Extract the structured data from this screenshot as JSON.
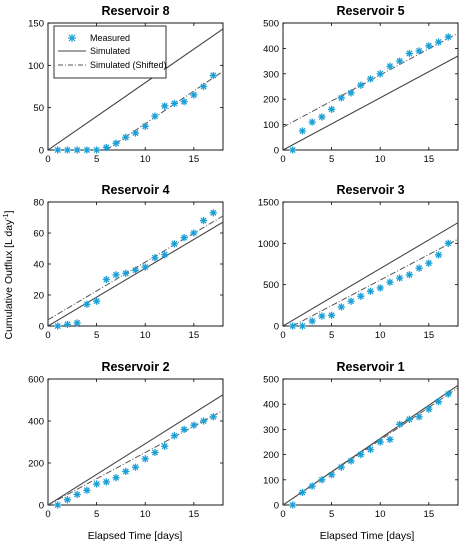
{
  "figure": {
    "ylabel": "Cumulative Outflux [L day",
    "ylabel_sup": "-1",
    "ylabel_close": "]",
    "xlabel": "Elapsed Time [days]"
  },
  "legend": {
    "measured": "Measured",
    "simulated": "Simulated",
    "shifted": "Simulated (Shifted)"
  },
  "colors": {
    "measured": "#1a9fd6",
    "simulated": "#444444",
    "shifted": "#555555"
  },
  "chart_data": [
    {
      "type": "scatter",
      "title": "Reservoir 8",
      "xlim": [
        0,
        18
      ],
      "ylim": [
        0,
        150
      ],
      "xticks": [
        0,
        5,
        10,
        15
      ],
      "yticks": [
        0,
        50,
        100,
        150
      ],
      "measured": {
        "x": [
          1,
          2,
          3,
          4,
          5,
          6,
          7,
          8,
          9,
          10,
          11,
          12,
          13,
          14,
          15,
          16,
          17
        ],
        "y": [
          0,
          0,
          0,
          0,
          0,
          3,
          8,
          15,
          20,
          28,
          40,
          52,
          55,
          57,
          65,
          75,
          88
        ]
      },
      "simulated": {
        "x": [
          0,
          18
        ],
        "y": [
          0,
          143
        ]
      },
      "shifted": {
        "x": [
          6,
          18
        ],
        "y": [
          0,
          93
        ]
      }
    },
    {
      "type": "scatter",
      "title": "Reservoir 5",
      "xlim": [
        0,
        18
      ],
      "ylim": [
        0,
        500
      ],
      "xticks": [
        0,
        5,
        10,
        15
      ],
      "yticks": [
        0,
        100,
        200,
        300,
        400,
        500
      ],
      "measured": {
        "x": [
          1,
          2,
          3,
          4,
          5,
          6,
          7,
          8,
          9,
          10,
          11,
          12,
          13,
          14,
          15,
          16,
          17
        ],
        "y": [
          0,
          75,
          110,
          130,
          160,
          205,
          225,
          255,
          280,
          300,
          330,
          350,
          380,
          390,
          410,
          425,
          445
        ]
      },
      "simulated": {
        "x": [
          0,
          18
        ],
        "y": [
          0,
          370
        ]
      },
      "shifted": {
        "x": [
          0,
          18
        ],
        "y": [
          90,
          460
        ]
      }
    },
    {
      "type": "scatter",
      "title": "Reservoir 4",
      "xlim": [
        0,
        18
      ],
      "ylim": [
        0,
        80
      ],
      "xticks": [
        0,
        5,
        10,
        15
      ],
      "yticks": [
        0,
        20,
        40,
        60,
        80
      ],
      "measured": {
        "x": [
          1,
          2,
          3,
          4,
          5,
          6,
          7,
          8,
          9,
          10,
          11,
          12,
          13,
          14,
          15,
          16,
          17
        ],
        "y": [
          0,
          1,
          2,
          14,
          16,
          30,
          33,
          34,
          36,
          38,
          44,
          46,
          53,
          57,
          60,
          68,
          73
        ]
      },
      "simulated": {
        "x": [
          0,
          18
        ],
        "y": [
          0,
          67
        ]
      },
      "shifted": {
        "x": [
          0,
          18
        ],
        "y": [
          4,
          71
        ]
      }
    },
    {
      "type": "scatter",
      "title": "Reservoir 3",
      "xlim": [
        0,
        18
      ],
      "ylim": [
        0,
        1500
      ],
      "xticks": [
        0,
        5,
        10,
        15
      ],
      "yticks": [
        0,
        500,
        1000,
        1500
      ],
      "measured": {
        "x": [
          1,
          2,
          3,
          4,
          5,
          6,
          7,
          8,
          9,
          10,
          11,
          12,
          13,
          14,
          15,
          16,
          17
        ],
        "y": [
          0,
          0,
          60,
          120,
          130,
          230,
          300,
          360,
          420,
          460,
          530,
          580,
          620,
          700,
          760,
          860,
          1000
        ]
      },
      "simulated": {
        "x": [
          0,
          18
        ],
        "y": [
          0,
          1250
        ]
      },
      "shifted": {
        "x": [
          1,
          18
        ],
        "y": [
          0,
          1050
        ]
      }
    },
    {
      "type": "scatter",
      "title": "Reservoir 2",
      "xlim": [
        0,
        18
      ],
      "ylim": [
        0,
        600
      ],
      "xticks": [
        0,
        5,
        10,
        15
      ],
      "yticks": [
        0,
        200,
        400,
        600
      ],
      "measured": {
        "x": [
          1,
          2,
          3,
          4,
          5,
          6,
          7,
          8,
          9,
          10,
          11,
          12,
          13,
          14,
          15,
          16,
          17
        ],
        "y": [
          0,
          25,
          50,
          70,
          100,
          110,
          130,
          160,
          180,
          220,
          250,
          280,
          330,
          360,
          380,
          400,
          420
        ]
      },
      "simulated": {
        "x": [
          0,
          18
        ],
        "y": [
          0,
          525
        ]
      },
      "shifted": {
        "x": [
          0,
          18
        ],
        "y": [
          0,
          450
        ]
      }
    },
    {
      "type": "scatter",
      "title": "Reservoir 1",
      "xlim": [
        0,
        18
      ],
      "ylim": [
        0,
        500
      ],
      "xticks": [
        0,
        5,
        10,
        15
      ],
      "yticks": [
        0,
        100,
        200,
        300,
        400,
        500
      ],
      "measured": {
        "x": [
          1,
          2,
          3,
          4,
          5,
          6,
          7,
          8,
          9,
          10,
          11,
          12,
          13,
          14,
          15,
          16,
          17
        ],
        "y": [
          0,
          50,
          75,
          100,
          120,
          150,
          175,
          200,
          220,
          250,
          260,
          320,
          340,
          350,
          380,
          410,
          440
        ]
      },
      "simulated": {
        "x": [
          0,
          18
        ],
        "y": [
          0,
          475
        ]
      },
      "shifted": {
        "x": [
          0,
          18
        ],
        "y": [
          0,
          465
        ]
      }
    }
  ]
}
